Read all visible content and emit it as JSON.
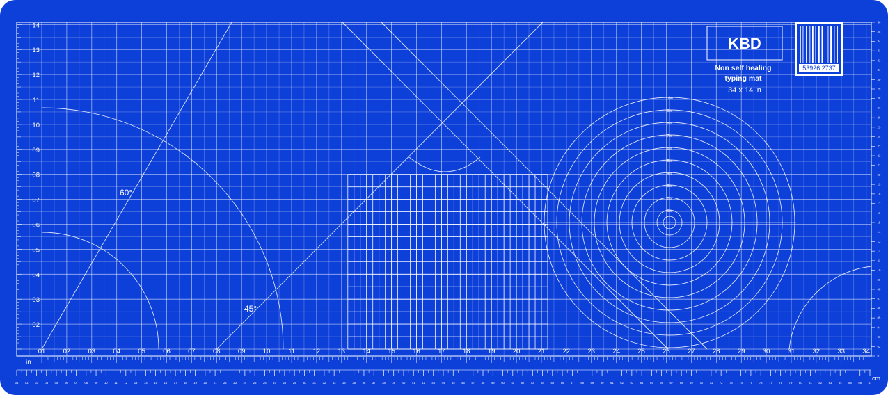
{
  "colors": {
    "mat": "#0d3fd9",
    "border": "#1f4fe8",
    "line": "#ffffff"
  },
  "brand": {
    "logo": "KBD",
    "desc_line1": "Non self healing",
    "desc_line2": "typing mat",
    "size": "34 x 14 in"
  },
  "barcode": {
    "number": "53926 2737"
  },
  "units": {
    "in": "in",
    "cm": "cm"
  },
  "angles": {
    "a60": "60°",
    "a45": "45°"
  },
  "bottom_in_labels": [
    "01",
    "02",
    "03",
    "04",
    "05",
    "06",
    "07",
    "08",
    "09",
    "10",
    "11",
    "12",
    "13",
    "14",
    "15",
    "16",
    "17",
    "18",
    "19",
    "20",
    "21",
    "22",
    "23",
    "24",
    "25",
    "26",
    "27",
    "28",
    "29",
    "30",
    "31",
    "32",
    "33",
    "34"
  ],
  "left_in_labels": [
    "01",
    "02",
    "03",
    "04",
    "05",
    "06",
    "07",
    "08",
    "09",
    "10",
    "11",
    "12",
    "13",
    "14"
  ],
  "cm_count": 87,
  "right_cm_count": 36,
  "ring_labels": [
    "10in",
    "9in",
    "8in",
    "7in",
    "6in",
    "5in",
    "4in",
    "3in",
    "2in",
    "1in"
  ]
}
